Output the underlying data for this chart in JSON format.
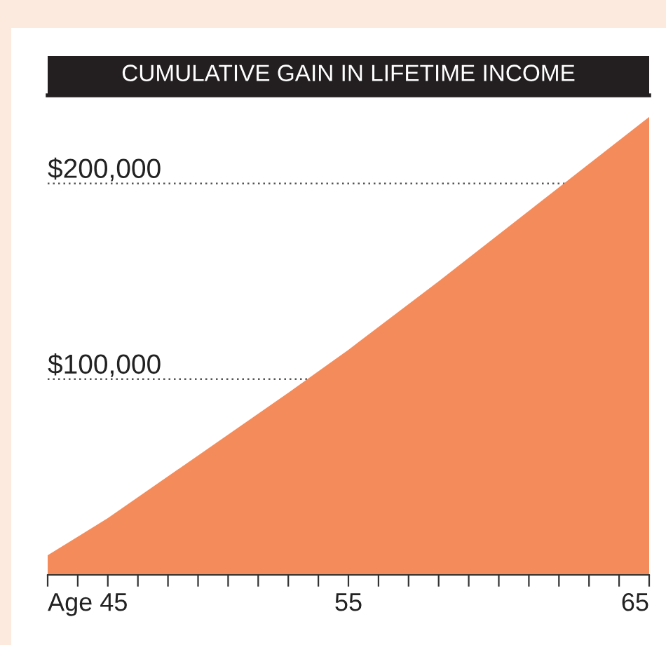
{
  "chart_data": {
    "type": "area",
    "title": "CUMULATIVE GAIN IN LIFETIME INCOME",
    "x": [
      45,
      47,
      50,
      53,
      55,
      58,
      60,
      62,
      65
    ],
    "series": [
      {
        "color": "#f48b5b",
        "values": [
          10000,
          29000,
          61000,
          93000,
          115000,
          150000,
          174000,
          198000,
          234000
        ]
      }
    ],
    "xlim": [
      45,
      65
    ],
    "xticks": [
      {
        "value": 45,
        "label": "Age 45"
      },
      {
        "value": 46,
        "label": null
      },
      {
        "value": 47,
        "label": null
      },
      {
        "value": 48,
        "label": null
      },
      {
        "value": 49,
        "label": null
      },
      {
        "value": 50,
        "label": null
      },
      {
        "value": 51,
        "label": null
      },
      {
        "value": 52,
        "label": null
      },
      {
        "value": 53,
        "label": null
      },
      {
        "value": 54,
        "label": null
      },
      55,
      {
        "value": 56,
        "label": null
      },
      {
        "value": 57,
        "label": null
      },
      {
        "value": 58,
        "label": null
      },
      {
        "value": 59,
        "label": null
      },
      {
        "value": 60,
        "label": null
      },
      {
        "value": 61,
        "label": null
      },
      {
        "value": 62,
        "label": null
      },
      {
        "value": 63,
        "label": null
      },
      {
        "value": 64,
        "label": null
      },
      65
    ],
    "ylim": [
      0,
      245000
    ],
    "yticks": [
      {
        "value": 100000,
        "label": "$100,000"
      },
      {
        "value": 200000,
        "label": "$200,000"
      }
    ],
    "grid": "y"
  }
}
